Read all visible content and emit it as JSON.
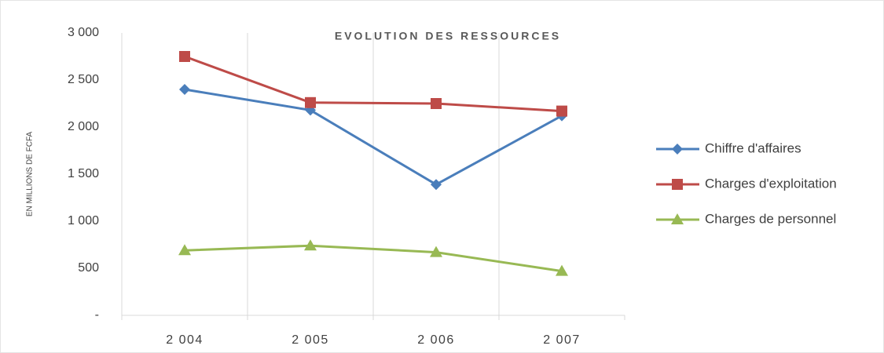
{
  "chart_data": {
    "type": "line",
    "title": "EVOLUTION DES RESSOURCES",
    "y_label": "EN MILLIONS DE FCFA",
    "categories": [
      "2 004",
      "2 005",
      "2 006",
      "2 007"
    ],
    "series": [
      {
        "name": "Chiffre d'affaires",
        "color": "#4a7ebb",
        "marker": "diamond",
        "values": [
          2400,
          2180,
          1390,
          2120
        ]
      },
      {
        "name": "Charges d'exploitation",
        "color": "#be4b48",
        "marker": "square",
        "values": [
          2750,
          2260,
          2250,
          2170
        ]
      },
      {
        "name": "Charges de personnel",
        "color": "#98b954",
        "marker": "triangle",
        "values": [
          690,
          740,
          670,
          470
        ]
      }
    ],
    "ylim": [
      0,
      3000
    ],
    "yticks": [
      {
        "value": 0,
        "label": "-"
      },
      500,
      {
        "value": 1000,
        "label": "1 000"
      },
      {
        "value": 1500,
        "label": "1 500"
      },
      {
        "value": 2000,
        "label": "2 000"
      },
      {
        "value": 2500,
        "label": "2 500"
      },
      {
        "value": 3000,
        "label": "3 000"
      }
    ],
    "legend": "right"
  }
}
